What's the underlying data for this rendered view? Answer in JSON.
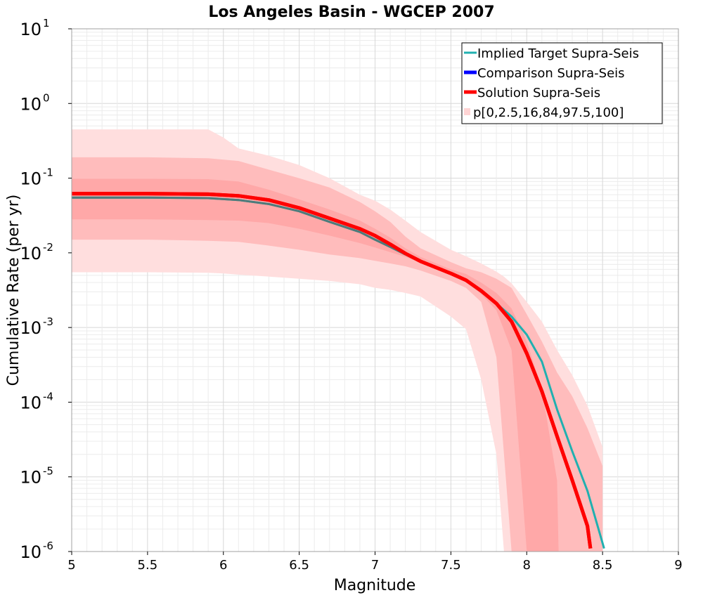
{
  "chart_data": {
    "type": "line",
    "title": "Los Angeles Basin - WGCEP 2007",
    "xlabel": "Magnitude",
    "ylabel": "Cumulative Rate (per yr)",
    "xlim": [
      5,
      9
    ],
    "ylim": [
      1e-06,
      10
    ],
    "yscale": "log",
    "grid": true,
    "legend_position": "top-right",
    "x_ticks": [
      "5",
      "5.5",
      "6",
      "6.5",
      "7",
      "7.5",
      "8",
      "8.5",
      "9"
    ],
    "x_tick_values": [
      5,
      5.5,
      6,
      6.5,
      7,
      7.5,
      8,
      8.5,
      9
    ],
    "y_ticks": [
      {
        "base": "10",
        "exp": "1",
        "value": 10
      },
      {
        "base": "10",
        "exp": "0",
        "value": 1
      },
      {
        "base": "10",
        "exp": "-1",
        "value": 0.1
      },
      {
        "base": "10",
        "exp": "-2",
        "value": 0.01
      },
      {
        "base": "10",
        "exp": "-3",
        "value": 0.001
      },
      {
        "base": "10",
        "exp": "-4",
        "value": 0.0001
      },
      {
        "base": "10",
        "exp": "-5",
        "value": 1e-05
      },
      {
        "base": "10",
        "exp": "-6",
        "value": 1e-06
      }
    ],
    "legend": [
      {
        "label": "Implied Target Supra-Seis",
        "color": "#20b0b0",
        "kind": "line"
      },
      {
        "label": "Comparison Supra-Seis",
        "color": "#0000ff",
        "kind": "line"
      },
      {
        "label": "Solution Supra-Seis",
        "color": "#ff0000",
        "kind": "line"
      },
      {
        "label": "p[0,2.5,16,84,97.5,100]",
        "color": "#ffd4d4",
        "kind": "band"
      }
    ],
    "series": [
      {
        "name": "Implied Target Supra-Seis",
        "color": "#20b0b0",
        "x": [
          5.0,
          5.5,
          5.9,
          6.1,
          6.3,
          6.5,
          6.7,
          6.9,
          7.0,
          7.1,
          7.2,
          7.3,
          7.5,
          7.6,
          7.7,
          7.8,
          7.9,
          8.0,
          8.1,
          8.2,
          8.3,
          8.4,
          8.5,
          8.51
        ],
        "y": [
          0.055,
          0.055,
          0.054,
          0.051,
          0.045,
          0.036,
          0.026,
          0.019,
          0.015,
          0.012,
          0.0095,
          0.0076,
          0.0052,
          0.0042,
          0.003,
          0.0021,
          0.0014,
          0.0008,
          0.00035,
          8e-05,
          2.2e-05,
          6.5e-06,
          1.3e-06,
          1.1e-06
        ]
      },
      {
        "name": "Solution Supra-Seis",
        "color": "#ff0000",
        "x": [
          5.0,
          5.5,
          5.9,
          6.1,
          6.3,
          6.5,
          6.7,
          6.9,
          7.0,
          7.1,
          7.2,
          7.3,
          7.5,
          7.6,
          7.7,
          7.8,
          7.9,
          8.0,
          8.1,
          8.2,
          8.3,
          8.4,
          8.42
        ],
        "y": [
          0.062,
          0.062,
          0.061,
          0.058,
          0.051,
          0.04,
          0.029,
          0.021,
          0.017,
          0.013,
          0.0098,
          0.0077,
          0.0053,
          0.0043,
          0.0031,
          0.0021,
          0.0012,
          0.00045,
          0.00014,
          3.5e-05,
          9e-06,
          2.2e-06,
          1.1e-06
        ]
      }
    ],
    "bands": [
      {
        "name": "p0-p100",
        "color": "#ffdede",
        "x": [
          5.0,
          5.5,
          5.9,
          6.0,
          6.1,
          6.3,
          6.5,
          6.7,
          6.9,
          7.0,
          7.1,
          7.2,
          7.3,
          7.5,
          7.6,
          7.7,
          7.8,
          7.85,
          7.9,
          8.0,
          8.1,
          8.2,
          8.3,
          8.4,
          8.5
        ],
        "low": [
          0.0055,
          0.0055,
          0.0054,
          0.0053,
          0.0051,
          0.0048,
          0.0045,
          0.0042,
          0.0038,
          0.0034,
          0.0032,
          0.0029,
          0.0026,
          0.0014,
          0.00095,
          0.0002,
          2e-05,
          1e-06,
          1e-06,
          1e-06,
          1e-06,
          1e-06,
          1e-06,
          1e-06,
          1e-06
        ],
        "high": [
          0.45,
          0.45,
          0.45,
          0.35,
          0.25,
          0.2,
          0.15,
          0.1,
          0.06,
          0.05,
          0.038,
          0.027,
          0.019,
          0.011,
          0.009,
          0.0072,
          0.0056,
          0.0048,
          0.0039,
          0.0022,
          0.0012,
          0.0005,
          0.00023,
          9e-05,
          2.5e-05
        ]
      },
      {
        "name": "p2.5-p97.5",
        "color": "#ffbcbc",
        "x": [
          5.0,
          5.5,
          5.9,
          6.1,
          6.3,
          6.5,
          6.7,
          6.9,
          7.0,
          7.1,
          7.2,
          7.3,
          7.5,
          7.6,
          7.7,
          7.8,
          7.9,
          8.0,
          8.1,
          8.2,
          8.3,
          8.4,
          8.5
        ],
        "low": [
          0.015,
          0.015,
          0.0145,
          0.014,
          0.0125,
          0.011,
          0.0095,
          0.0085,
          0.0078,
          0.0072,
          0.0066,
          0.0058,
          0.0042,
          0.0034,
          0.0022,
          0.0004,
          1e-06,
          1e-06,
          1e-06,
          1e-06,
          1e-06,
          1e-06,
          1e-06
        ],
        "high": [
          0.19,
          0.19,
          0.185,
          0.17,
          0.13,
          0.1,
          0.075,
          0.048,
          0.036,
          0.026,
          0.0165,
          0.0115,
          0.0075,
          0.0062,
          0.0055,
          0.0045,
          0.0034,
          0.0015,
          0.00065,
          0.00025,
          0.00012,
          4.5e-05,
          1.4e-05
        ]
      },
      {
        "name": "p16-p84",
        "color": "#ffa8a8",
        "x": [
          5.0,
          5.5,
          5.9,
          6.1,
          6.3,
          6.5,
          6.7,
          6.9,
          7.0,
          7.1,
          7.2,
          7.3,
          7.5,
          7.6,
          7.7,
          7.8,
          7.9,
          8.0,
          8.1,
          8.2,
          8.21
        ],
        "low": [
          0.028,
          0.028,
          0.0275,
          0.027,
          0.025,
          0.021,
          0.017,
          0.0135,
          0.0118,
          0.0102,
          0.0088,
          0.0074,
          0.005,
          0.0041,
          0.0028,
          0.0017,
          0.0005,
          1e-06,
          1e-06,
          1e-06,
          1e-06
        ],
        "high": [
          0.098,
          0.098,
          0.097,
          0.09,
          0.07,
          0.052,
          0.038,
          0.027,
          0.021,
          0.016,
          0.0115,
          0.0088,
          0.006,
          0.0052,
          0.004,
          0.0029,
          0.0018,
          0.00065,
          0.00015,
          9e-06,
          1e-06
        ]
      }
    ]
  }
}
